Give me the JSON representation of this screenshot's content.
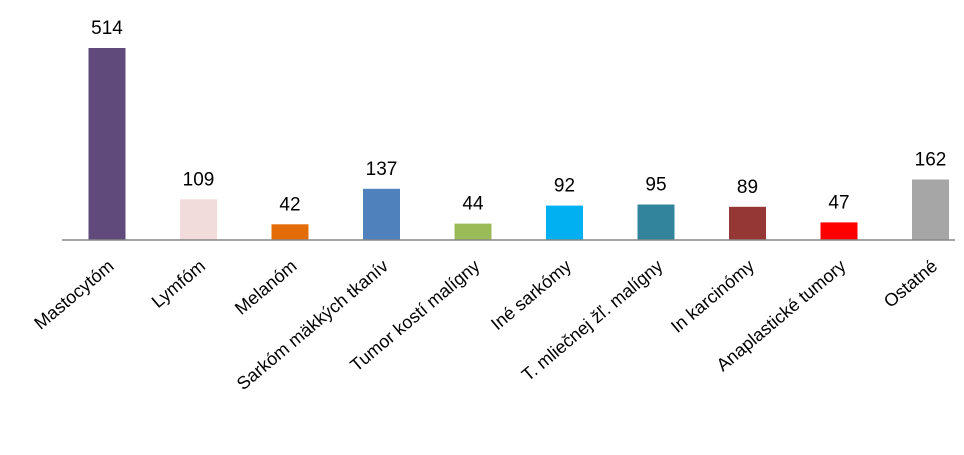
{
  "chart_data": {
    "type": "bar",
    "categories": [
      "Mastocytóm",
      "Lymfóm",
      "Melanóm",
      "Sarkóm mäkkých tkanív",
      "Tumor kostí malígny",
      "Iné sarkómy",
      "T. mliečnej žľ. malígny",
      "In karcinómy",
      "Anaplastické tumory",
      "Ostatné"
    ],
    "values": [
      514,
      109,
      42,
      137,
      44,
      92,
      95,
      89,
      47,
      162
    ],
    "colors": [
      "#604a7b",
      "#f2dcdb",
      "#e36c09",
      "#4f81bd",
      "#9bbb59",
      "#00b0f0",
      "#31849b",
      "#953735",
      "#ff0000",
      "#a6a6a6"
    ],
    "data_labels": true,
    "grid": false,
    "legend": "none",
    "ylim": [
      0,
      514
    ],
    "axis_color": "#868686"
  }
}
